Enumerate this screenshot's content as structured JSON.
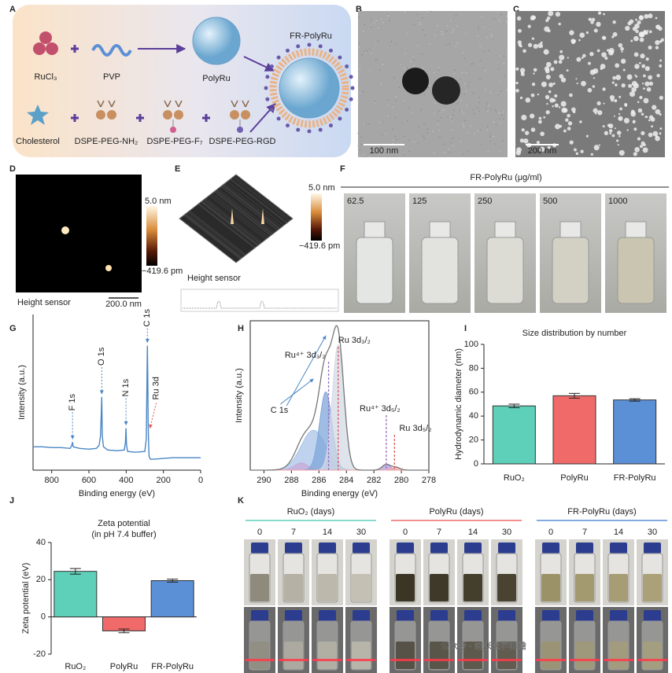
{
  "panels": {
    "letters": [
      "A",
      "B",
      "C",
      "D",
      "E",
      "F",
      "G",
      "H",
      "I",
      "J",
      "K"
    ]
  },
  "panel_a": {
    "labels": {
      "rucl3": "RuCl₃",
      "pvp": "PVP",
      "polyru": "PolyRu",
      "fr_polyru": "FR-PolyRu",
      "cholesterol": "Cholesterol",
      "nh2": "DSPE-PEG-NH₂",
      "f7": "DSPE-PEG-F₇",
      "rgd": "DSPE-PEG-RGD"
    }
  },
  "panel_b": {
    "scale_bar": "100 nm"
  },
  "panel_c": {
    "scale_bar": "200 nm"
  },
  "panel_d": {
    "colorbar_max": "5.0 nm",
    "colorbar_min": "−419.6 pm",
    "caption": "Height sensor",
    "scale_bar": "200.0 nm"
  },
  "panel_e": {
    "colorbar_max": "5.0 nm",
    "colorbar_min": "−419.6 pm",
    "caption": "Height sensor"
  },
  "panel_f": {
    "title": "FR-PolyRu (μg/ml)",
    "concentrations": [
      "62.5",
      "125",
      "250",
      "500",
      "1000"
    ]
  },
  "chart_data": [
    {
      "type": "line",
      "xlabel": "Binding energy (eV)",
      "ylabel": "Intensity (a.u.)",
      "color": "#4a86c5",
      "x": [
        900,
        850,
        800,
        750,
        700,
        692,
        688,
        684,
        650,
        600,
        560,
        545,
        538,
        534,
        531,
        528,
        522,
        500,
        450,
        410,
        404,
        401,
        398,
        392,
        350,
        300,
        292,
        289,
        286,
        284,
        282,
        280,
        277,
        270,
        250,
        200,
        150,
        100,
        50,
        0
      ],
      "values": [
        15,
        15,
        14.5,
        14.5,
        14,
        16,
        18,
        15,
        14,
        13.5,
        14,
        16,
        22,
        35,
        47,
        22,
        15,
        13,
        12.5,
        13,
        18,
        27,
        16,
        12,
        11.5,
        12,
        20,
        50,
        80,
        60,
        30,
        20,
        9,
        7,
        7,
        7.5,
        8,
        8,
        8,
        8
      ],
      "xlim": [
        900,
        0
      ],
      "ylim": [
        0,
        100
      ],
      "xticks": [
        800,
        600,
        400,
        200,
        0
      ],
      "annotations": [
        {
          "text": "F 1s",
          "x": 688
        },
        {
          "text": "O 1s",
          "x": 531
        },
        {
          "text": "N 1s",
          "x": 401
        },
        {
          "text": "C 1s",
          "x": 286
        },
        {
          "text": "Ru 3d",
          "x": 281,
          "color": "#e05a5a"
        }
      ]
    },
    {
      "type": "xps",
      "xlabel": "Binding energy (eV)",
      "ylabel": "Intensity (a.u.)",
      "xlim": [
        291,
        278
      ],
      "ylim": [
        0,
        105
      ],
      "xticks": [
        290,
        288,
        286,
        284,
        282,
        280,
        278
      ],
      "components": [
        {
          "center": 286.4,
          "height": 28,
          "width": 0.9,
          "color": "#a9c4e8"
        },
        {
          "center": 287.3,
          "height": 5,
          "width": 0.5,
          "color": "#c8a8d8"
        },
        {
          "center": 285.5,
          "height": 55,
          "width": 0.45,
          "color": "#7fa6d9"
        },
        {
          "center": 284.6,
          "height": 88,
          "width": 0.42,
          "color": "#d3dae6"
        },
        {
          "center": 281.1,
          "height": 4,
          "width": 0.3,
          "color": "#b39ddb"
        },
        {
          "center": 280.4,
          "height": 2,
          "width": 0.3,
          "color": "#f3a6a6"
        }
      ],
      "annotations": [
        {
          "text": "C 1s",
          "x": 286.4,
          "color": "#4a86c5"
        },
        {
          "text": "Ru⁴⁺ 3d₃/₂",
          "x": 285.3,
          "color": "#9a6fc2"
        },
        {
          "text": "Ru 3d₃/₂",
          "x": 284.6,
          "color": "#e05a5a"
        },
        {
          "text": "Ru⁴⁺ 3d₅/₂",
          "x": 281.1,
          "color": "#9a6fc2"
        },
        {
          "text": "Ru 3d₅/₂",
          "x": 280.5,
          "color": "#e05a5a"
        }
      ]
    },
    {
      "type": "bar",
      "title": "Size distribution by number",
      "ylabel": "Hydrodynamic diameter (nm)",
      "categories": [
        "RuO₂",
        "PolyRu",
        "FR-PolyRu"
      ],
      "values": [
        48.5,
        57,
        53.5
      ],
      "errors": [
        1.5,
        2,
        1
      ],
      "colors": [
        "#5ecfb8",
        "#f06a6a",
        "#5b8fd6"
      ],
      "ylim": [
        0,
        100
      ],
      "yticks": [
        0,
        20,
        40,
        60,
        80,
        100
      ]
    },
    {
      "type": "bar",
      "title": "Zeta potential",
      "subtitle": "(in pH 7.4 buffer)",
      "ylabel": "Zeta potential (eV)",
      "categories": [
        "RuO₂",
        "PolyRu",
        "FR-PolyRu"
      ],
      "values": [
        24.5,
        -7.5,
        19.5
      ],
      "errors": [
        1.5,
        1,
        0.8
      ],
      "colors": [
        "#5ecfb8",
        "#f06a6a",
        "#5b8fd6"
      ],
      "ylim": [
        -20,
        40
      ],
      "yticks": [
        -20,
        0,
        20,
        40
      ]
    }
  ],
  "panel_k": {
    "groups": [
      {
        "title": "RuO₂ (days)",
        "color": "#5ecfb8",
        "days": [
          "0",
          "7",
          "14",
          "30"
        ]
      },
      {
        "title": "PolyRu (days)",
        "color": "#f06a6a",
        "days": [
          "0",
          "7",
          "14",
          "30"
        ]
      },
      {
        "title": "FR-PolyRu (days)",
        "color": "#5b8fd6",
        "days": [
          "0",
          "7",
          "14",
          "30"
        ]
      }
    ]
  },
  "watermark": "公众号 · 纳米医学前瞻"
}
